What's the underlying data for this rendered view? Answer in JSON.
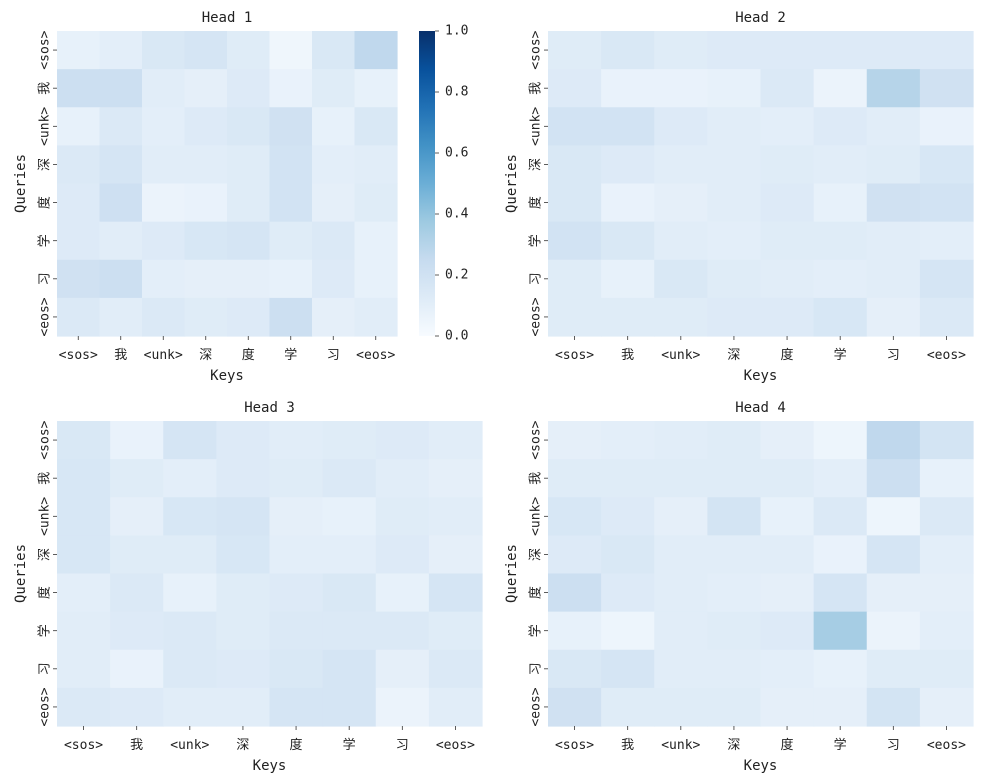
{
  "chart_data": {
    "type": "heatmap",
    "colormap": "Blues",
    "vmin": 0.0,
    "vmax": 1.0,
    "colorbar": {
      "ticks": [
        "0.0",
        "0.2",
        "0.4",
        "0.6",
        "0.8",
        "1.0"
      ],
      "ticks_values": [
        0.0,
        0.2,
        0.4,
        0.6,
        0.8,
        1.0
      ],
      "attached_to": "Head 1"
    },
    "heads": [
      {
        "title": "Head 1",
        "xlabel": "Keys",
        "ylabel": "Queries",
        "x_tokens": [
          "<sos>",
          "我",
          "<unk>",
          "深",
          "度",
          "学",
          "习",
          "<eos>"
        ],
        "y_tokens": [
          "<sos>",
          "我",
          "<unk>",
          "深",
          "度",
          "学",
          "习",
          "<eos>"
        ],
        "values": [
          [
            0.08,
            0.1,
            0.15,
            0.17,
            0.12,
            0.04,
            0.15,
            0.27
          ],
          [
            0.22,
            0.22,
            0.11,
            0.09,
            0.13,
            0.07,
            0.12,
            0.08
          ],
          [
            0.08,
            0.14,
            0.1,
            0.13,
            0.15,
            0.2,
            0.08,
            0.15
          ],
          [
            0.14,
            0.17,
            0.11,
            0.11,
            0.12,
            0.19,
            0.1,
            0.11
          ],
          [
            0.13,
            0.21,
            0.06,
            0.07,
            0.12,
            0.19,
            0.09,
            0.12
          ],
          [
            0.13,
            0.11,
            0.13,
            0.16,
            0.17,
            0.12,
            0.14,
            0.08
          ],
          [
            0.2,
            0.22,
            0.1,
            0.09,
            0.09,
            0.08,
            0.13,
            0.08
          ],
          [
            0.14,
            0.11,
            0.14,
            0.12,
            0.13,
            0.22,
            0.09,
            0.11
          ]
        ]
      },
      {
        "title": "Head 2",
        "xlabel": "Keys",
        "ylabel": "Queries",
        "x_tokens": [
          "<sos>",
          "我",
          "<unk>",
          "深",
          "度",
          "学",
          "习",
          "<eos>"
        ],
        "y_tokens": [
          "<sos>",
          "我",
          "<unk>",
          "深",
          "度",
          "学",
          "习",
          "<eos>"
        ],
        "values": [
          [
            0.12,
            0.15,
            0.12,
            0.13,
            0.13,
            0.13,
            0.13,
            0.13
          ],
          [
            0.13,
            0.07,
            0.07,
            0.08,
            0.14,
            0.06,
            0.3,
            0.2
          ],
          [
            0.19,
            0.19,
            0.13,
            0.11,
            0.1,
            0.13,
            0.11,
            0.07
          ],
          [
            0.15,
            0.13,
            0.11,
            0.11,
            0.12,
            0.11,
            0.12,
            0.16
          ],
          [
            0.15,
            0.07,
            0.09,
            0.11,
            0.13,
            0.08,
            0.2,
            0.19
          ],
          [
            0.19,
            0.15,
            0.11,
            0.1,
            0.12,
            0.12,
            0.11,
            0.1
          ],
          [
            0.12,
            0.08,
            0.15,
            0.12,
            0.11,
            0.1,
            0.11,
            0.17
          ],
          [
            0.12,
            0.12,
            0.12,
            0.13,
            0.13,
            0.16,
            0.09,
            0.14
          ]
        ]
      },
      {
        "title": "Head 3",
        "xlabel": "Keys",
        "ylabel": "Queries",
        "x_tokens": [
          "<sos>",
          "我",
          "<unk>",
          "深",
          "度",
          "学",
          "习",
          "<eos>"
        ],
        "y_tokens": [
          "<sos>",
          "我",
          "<unk>",
          "深",
          "度",
          "学",
          "习",
          "<eos>"
        ],
        "values": [
          [
            0.15,
            0.07,
            0.17,
            0.13,
            0.11,
            0.12,
            0.13,
            0.11
          ],
          [
            0.16,
            0.12,
            0.1,
            0.13,
            0.12,
            0.14,
            0.11,
            0.09
          ],
          [
            0.16,
            0.09,
            0.16,
            0.17,
            0.09,
            0.08,
            0.12,
            0.11
          ],
          [
            0.16,
            0.12,
            0.12,
            0.16,
            0.1,
            0.1,
            0.13,
            0.09
          ],
          [
            0.1,
            0.14,
            0.08,
            0.12,
            0.13,
            0.15,
            0.08,
            0.17
          ],
          [
            0.11,
            0.13,
            0.14,
            0.12,
            0.14,
            0.14,
            0.14,
            0.12
          ],
          [
            0.11,
            0.07,
            0.14,
            0.13,
            0.15,
            0.17,
            0.09,
            0.14
          ],
          [
            0.14,
            0.13,
            0.11,
            0.11,
            0.17,
            0.17,
            0.06,
            0.11
          ]
        ]
      },
      {
        "title": "Head 4",
        "xlabel": "Keys",
        "ylabel": "Queries",
        "x_tokens": [
          "<sos>",
          "我",
          "<unk>",
          "深",
          "度",
          "学",
          "习",
          "<eos>"
        ],
        "y_tokens": [
          "<sos>",
          "我",
          "<unk>",
          "深",
          "度",
          "学",
          "习",
          "<eos>"
        ],
        "values": [
          [
            0.09,
            0.1,
            0.11,
            0.12,
            0.09,
            0.05,
            0.27,
            0.18
          ],
          [
            0.12,
            0.12,
            0.12,
            0.12,
            0.12,
            0.1,
            0.22,
            0.08
          ],
          [
            0.16,
            0.13,
            0.09,
            0.18,
            0.08,
            0.14,
            0.05,
            0.14
          ],
          [
            0.13,
            0.15,
            0.11,
            0.11,
            0.11,
            0.07,
            0.17,
            0.1
          ],
          [
            0.22,
            0.13,
            0.11,
            0.1,
            0.09,
            0.17,
            0.09,
            0.09
          ],
          [
            0.08,
            0.05,
            0.11,
            0.12,
            0.13,
            0.35,
            0.06,
            0.1
          ],
          [
            0.15,
            0.17,
            0.11,
            0.11,
            0.1,
            0.08,
            0.12,
            0.12
          ],
          [
            0.2,
            0.12,
            0.12,
            0.12,
            0.09,
            0.09,
            0.18,
            0.09
          ]
        ]
      }
    ]
  }
}
